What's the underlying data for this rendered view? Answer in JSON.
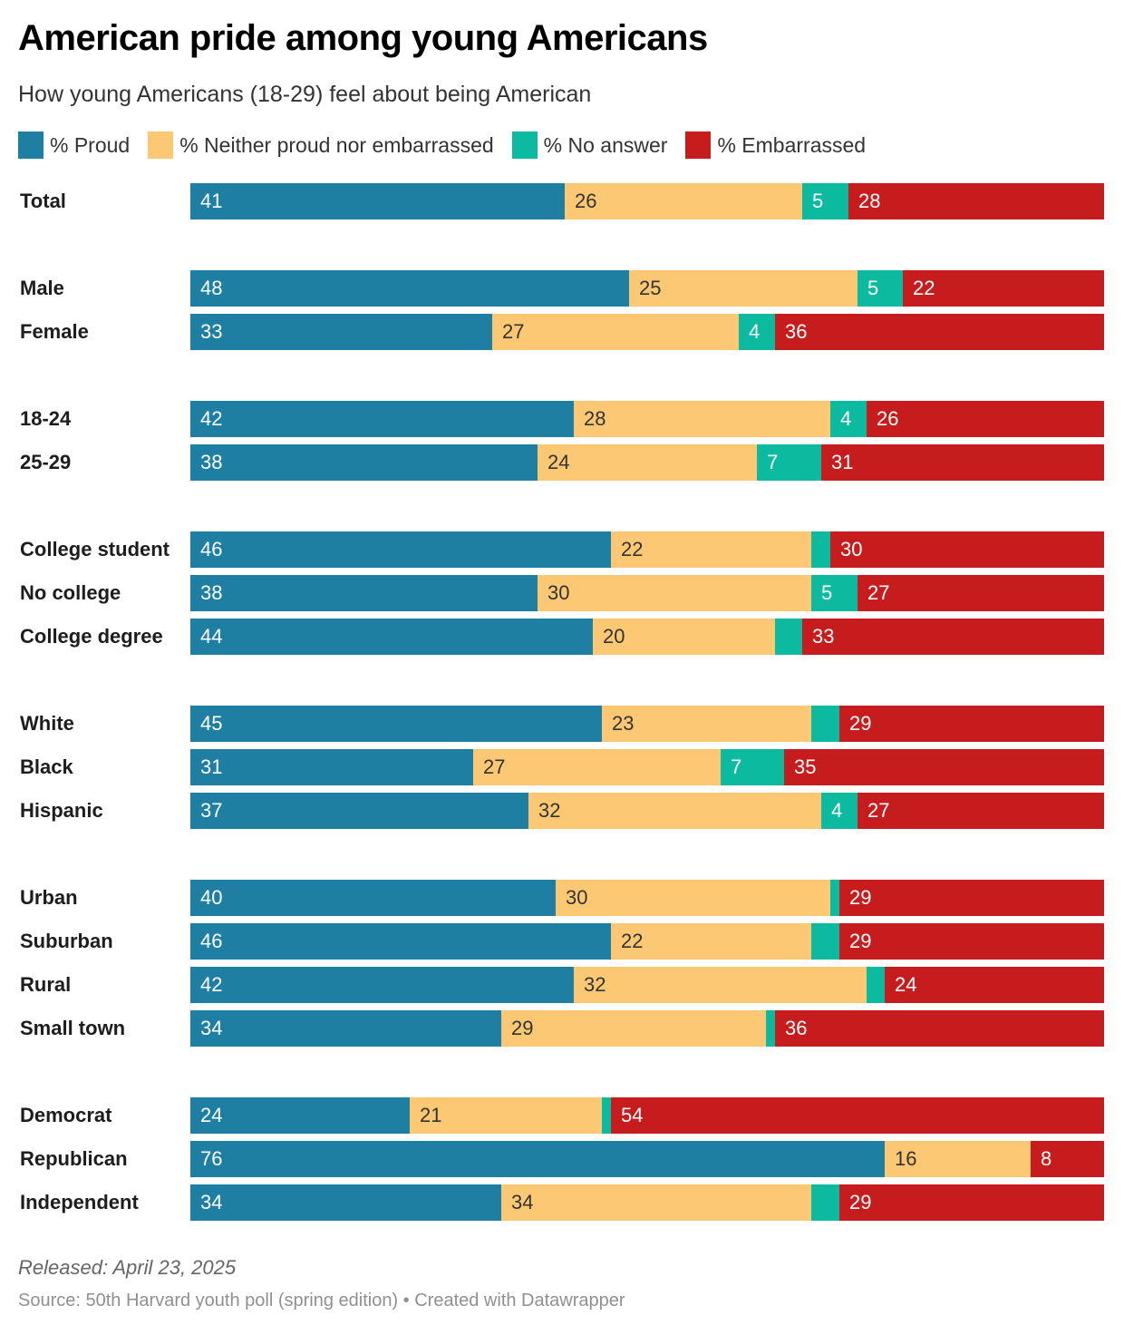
{
  "chart_data": {
    "type": "bar",
    "orientation": "horizontal-stacked-100",
    "title": "American pride among young Americans",
    "subtitle": "How young Americans (18-29) feel about being American",
    "xlabel": "",
    "ylabel": "",
    "xlim": [
      0,
      100
    ],
    "grid": false,
    "legend_position": "top-left",
    "series": [
      {
        "name": "% Proud",
        "color": "#1f7fa2",
        "label_color": "#ffffff"
      },
      {
        "name": "% Neither proud nor embarrassed",
        "color": "#fdc874",
        "label_color": "#333333"
      },
      {
        "name": "% No answer",
        "color": "#0cbb9f",
        "label_color": "#ffffff"
      },
      {
        "name": "% Embarrassed",
        "color": "#c71c1d",
        "label_color": "#ffffff"
      }
    ],
    "groups": [
      {
        "rows": [
          {
            "category": "Total",
            "values": [
              41,
              26,
              5,
              28
            ],
            "labels": [
              "41",
              "26",
              "5",
              "28"
            ]
          }
        ]
      },
      {
        "rows": [
          {
            "category": "Male",
            "values": [
              48,
              25,
              5,
              22
            ],
            "labels": [
              "48",
              "25",
              "5",
              "22"
            ]
          },
          {
            "category": "Female",
            "values": [
              33,
              27,
              4,
              36
            ],
            "labels": [
              "33",
              "27",
              "4",
              "36"
            ]
          }
        ]
      },
      {
        "rows": [
          {
            "category": "18-24",
            "values": [
              42,
              28,
              4,
              26
            ],
            "labels": [
              "42",
              "28",
              "4",
              "26"
            ]
          },
          {
            "category": "25-29",
            "values": [
              38,
              24,
              7,
              31
            ],
            "labels": [
              "38",
              "24",
              "7",
              "31"
            ]
          }
        ]
      },
      {
        "rows": [
          {
            "category": "College student",
            "values": [
              46,
              22,
              2,
              30
            ],
            "labels": [
              "46",
              "22",
              "",
              "30"
            ]
          },
          {
            "category": "No college",
            "values": [
              38,
              30,
              5,
              27
            ],
            "labels": [
              "38",
              "30",
              "5",
              "27"
            ]
          },
          {
            "category": "College degree",
            "values": [
              44,
              20,
              3,
              33
            ],
            "labels": [
              "44",
              "20",
              "",
              "33"
            ]
          }
        ]
      },
      {
        "rows": [
          {
            "category": "White",
            "values": [
              45,
              23,
              3,
              29
            ],
            "labels": [
              "45",
              "23",
              "",
              "29"
            ]
          },
          {
            "category": "Black",
            "values": [
              31,
              27,
              7,
              35
            ],
            "labels": [
              "31",
              "27",
              "7",
              "35"
            ]
          },
          {
            "category": "Hispanic",
            "values": [
              37,
              32,
              4,
              27
            ],
            "labels": [
              "37",
              "32",
              "4",
              "27"
            ]
          }
        ]
      },
      {
        "rows": [
          {
            "category": "Urban",
            "values": [
              40,
              30,
              1,
              29
            ],
            "labels": [
              "40",
              "30",
              "",
              "29"
            ]
          },
          {
            "category": "Suburban",
            "values": [
              46,
              22,
              3,
              29
            ],
            "labels": [
              "46",
              "22",
              "",
              "29"
            ]
          },
          {
            "category": "Rural",
            "values": [
              42,
              32,
              2,
              24
            ],
            "labels": [
              "42",
              "32",
              "",
              "24"
            ]
          },
          {
            "category": "Small town",
            "values": [
              34,
              29,
              1,
              36
            ],
            "labels": [
              "34",
              "29",
              "",
              "36"
            ]
          }
        ]
      },
      {
        "rows": [
          {
            "category": "Democrat",
            "values": [
              24,
              21,
              1,
              54
            ],
            "labels": [
              "24",
              "21",
              "",
              "54"
            ]
          },
          {
            "category": "Republican",
            "values": [
              76,
              16,
              0,
              8
            ],
            "labels": [
              "76",
              "16",
              "",
              "8"
            ]
          },
          {
            "category": "Independent",
            "values": [
              34,
              34,
              3,
              29
            ],
            "labels": [
              "34",
              "34",
              "",
              "29"
            ]
          }
        ]
      }
    ]
  },
  "footer": {
    "released": "Released: April 23, 2025",
    "source": "Source: 50th Harvard youth poll (spring edition)  • Created with Datawrapper"
  }
}
